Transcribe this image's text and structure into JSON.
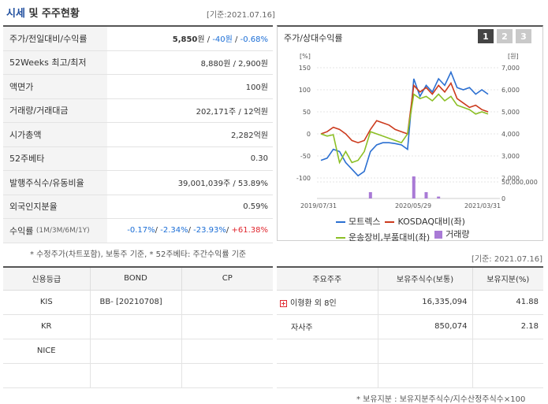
{
  "header": {
    "title_accent": "시세",
    "title_rest": " 및 주주현황",
    "date": "[기준:2021.07.16]"
  },
  "price_table": [
    {
      "label": "주가/전일대비/수익률"
    },
    {
      "label": "52Weeks 최고/최저",
      "value": "8,880원 / 2,900원"
    },
    {
      "label": "액면가",
      "value": "100원"
    },
    {
      "label": "거래량/거래대금",
      "value": "202,171주 / 12억원"
    },
    {
      "label": "시가총액",
      "value": "2,282억원"
    },
    {
      "label": "52주베타",
      "value": "0.30"
    },
    {
      "label": "발행주식수/유동비율",
      "value": "39,001,039주 / 53.89%"
    },
    {
      "label": "외국인지분율",
      "value": "0.59%"
    },
    {
      "label": "수익률",
      "label_small": "(1M/3M/6M/1Y)"
    }
  ],
  "price": {
    "current": "5,850",
    "unit": "원",
    "sep": " / ",
    "change": "-40원",
    "rate": "-0.68%"
  },
  "returns": {
    "r1m": "-0.17%",
    "r3m": "-2.34%",
    "r6m": "-23.93%",
    "r1y": "+61.38%"
  },
  "note1": "* 수정주가(차트포함), 보통주 기준, * 52주베타: 주간수익률 기준",
  "chart": {
    "title": "주가/상대수익률",
    "tabs": [
      "1",
      "2",
      "3"
    ],
    "left_unit": "[%]",
    "right_unit": "[원]",
    "colors": {
      "stock": "#2b6fd1",
      "kosdaq": "#cc3a1d",
      "sector": "#8cbf26",
      "volume": "#a97ad6"
    }
  },
  "chart_data": {
    "type": "line",
    "x_ticks": [
      "2019/07/31",
      "2020/05/29",
      "2021/03/31"
    ],
    "y_left_ticks": [
      150,
      100,
      50,
      0,
      -50,
      -100
    ],
    "y_right_ticks": [
      7000,
      6000,
      5000,
      4000,
      3000,
      2000
    ],
    "y_right_ticks_volume": [
      "50,000,000",
      "0"
    ],
    "ylim_left": [
      -100,
      150
    ],
    "series": [
      {
        "name": "모트렉스",
        "values": [
          -60,
          -55,
          -35,
          -40,
          -65,
          -80,
          -95,
          -85,
          -40,
          -25,
          -20,
          -20,
          -22,
          -25,
          -35,
          125,
          85,
          110,
          95,
          125,
          110,
          140,
          105,
          100,
          105,
          90,
          100,
          90
        ]
      },
      {
        "name": "KOSDAQ대비(좌)",
        "values": [
          0,
          5,
          15,
          10,
          0,
          -15,
          -20,
          -15,
          10,
          30,
          25,
          20,
          10,
          5,
          0,
          110,
          95,
          105,
          90,
          110,
          95,
          115,
          80,
          70,
          60,
          65,
          55,
          50
        ]
      },
      {
        "name": "운송장비,부품대비(좌)",
        "values": [
          0,
          -5,
          -2,
          -65,
          -40,
          -65,
          -60,
          -40,
          5,
          0,
          -5,
          -10,
          -15,
          -20,
          0,
          90,
          80,
          85,
          75,
          90,
          75,
          85,
          65,
          60,
          55,
          45,
          50,
          45
        ]
      },
      {
        "name": "거래량",
        "values": [
          0,
          0,
          0,
          0,
          0,
          0,
          0,
          0,
          10,
          0,
          0,
          0,
          0,
          0,
          0,
          35,
          0,
          10,
          0,
          3,
          0,
          0,
          0,
          0,
          0,
          0,
          0,
          0
        ]
      }
    ]
  },
  "legend": [
    {
      "label": "모트렉스",
      "kind": "line",
      "color": "#2b6fd1"
    },
    {
      "label": "KOSDAQ대비(좌)",
      "kind": "line",
      "color": "#cc3a1d"
    },
    {
      "label": "운송장비,부품대비(좌)",
      "kind": "line",
      "color": "#8cbf26"
    },
    {
      "label": "거래량",
      "kind": "box",
      "color": "#a97ad6"
    }
  ],
  "date2": "[기준: 2021.07.16]",
  "credit_table": {
    "headers": [
      "신용등급",
      "BOND",
      "CP"
    ],
    "rows": [
      [
        "KIS",
        "BB-  [20210708]",
        ""
      ],
      [
        "KR",
        "",
        ""
      ],
      [
        "NICE",
        "",
        ""
      ],
      [
        "",
        "",
        ""
      ]
    ]
  },
  "share_table": {
    "headers": [
      "주요주주",
      "보유주식수(보통)",
      "보유지분(%)"
    ],
    "rows": [
      [
        "이형환 외 8인",
        "16,335,094",
        "41.88"
      ],
      [
        "자사주",
        "850,074",
        "2.18"
      ],
      [
        "",
        "",
        ""
      ],
      [
        "",
        "",
        ""
      ]
    ]
  },
  "note2": "* 보유지분 : 보유지분주식수/지수산정주식수×100"
}
